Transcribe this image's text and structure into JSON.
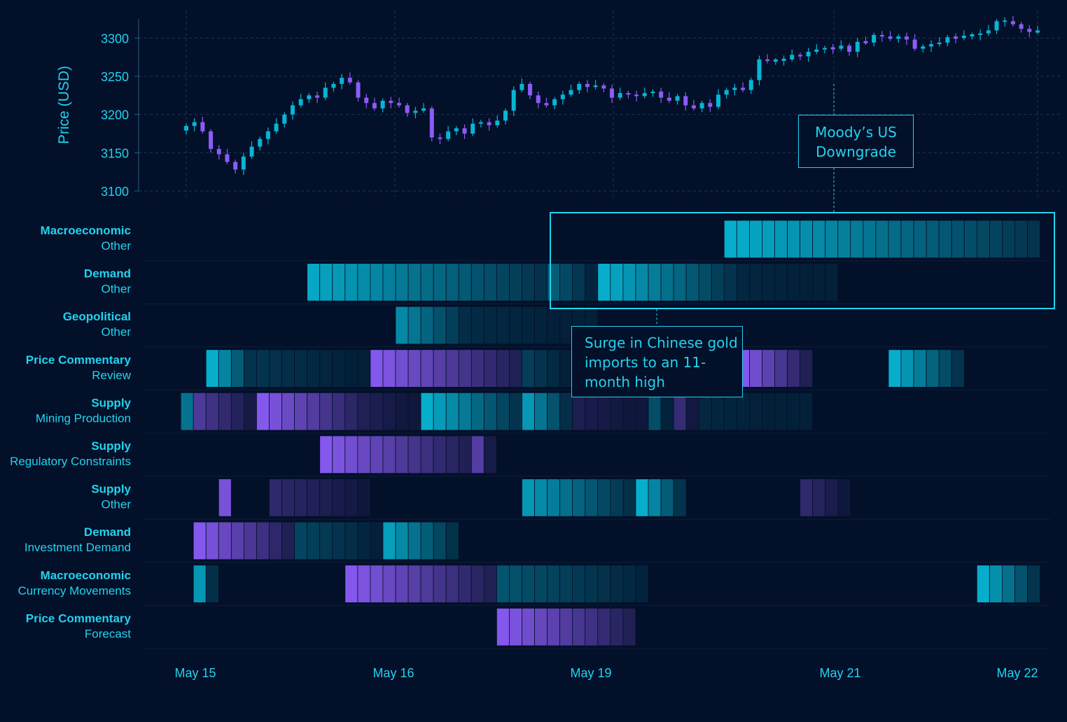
{
  "chart_data": {
    "type": "candlestick+heatmap",
    "colors": {
      "background": "#031029",
      "accent": "#22d3ee",
      "up_candle": "#06b6d4",
      "down_candle": "#8b5cf6",
      "positive_cell": "#06b6d4",
      "negative_cell": "#8b5cf6"
    },
    "price_panel": {
      "ylabel": "Price (USD)",
      "ylim": [
        3100,
        3325
      ],
      "yticks": [
        3100,
        3150,
        3200,
        3250,
        3300
      ],
      "close_series": [
        3185,
        3190,
        3178,
        3155,
        3148,
        3138,
        3128,
        3145,
        3158,
        3168,
        3178,
        3188,
        3200,
        3212,
        3220,
        3225,
        3222,
        3235,
        3240,
        3248,
        3242,
        3222,
        3215,
        3208,
        3218,
        3215,
        3212,
        3202,
        3205,
        3208,
        3170,
        3168,
        3178,
        3182,
        3175,
        3188,
        3190,
        3186,
        3192,
        3205,
        3232,
        3240,
        3225,
        3215,
        3212,
        3220,
        3226,
        3232,
        3240,
        3236,
        3238,
        3234,
        3222,
        3228,
        3226,
        3224,
        3228,
        3230,
        3222,
        3218,
        3224,
        3212,
        3208,
        3215,
        3210,
        3226,
        3232,
        3235,
        3232,
        3245,
        3272,
        3270,
        3271,
        3272,
        3278,
        3276,
        3282,
        3285,
        3287,
        3286,
        3290,
        3282,
        3295,
        3294,
        3304,
        3302,
        3299,
        3302,
        3298,
        3286,
        3289,
        3292,
        3294,
        3301,
        3300,
        3303,
        3304,
        3306,
        3310,
        3322,
        3322,
        3318,
        3312,
        3308,
        3309
      ]
    },
    "x_axis": {
      "tick_labels": [
        "May 15",
        "May 16",
        "May 19",
        "May 21",
        "May 22"
      ]
    },
    "heatmap": {
      "categories": [
        {
          "top": "Macroeconomic",
          "bottom": "Other"
        },
        {
          "top": "Demand",
          "bottom": "Other"
        },
        {
          "top": "Geopolitical",
          "bottom": "Other"
        },
        {
          "top": "Price Commentary",
          "bottom": "Review"
        },
        {
          "top": "Supply",
          "bottom": "Mining Production"
        },
        {
          "top": "Supply",
          "bottom": "Regulatory Constraints"
        },
        {
          "top": "Supply",
          "bottom": "Other"
        },
        {
          "top": "Demand",
          "bottom": "Investment Demand"
        },
        {
          "top": "Macroeconomic",
          "bottom": "Currency Movements"
        },
        {
          "top": "Price Commentary",
          "bottom": "Forecast"
        }
      ],
      "events": [
        {
          "row": 0,
          "start": 46,
          "len": 25,
          "sign": 1,
          "strength": 1.0
        },
        {
          "row": 1,
          "start": 13,
          "len": 19,
          "sign": 1,
          "strength": 0.95
        },
        {
          "row": 1,
          "start": 32,
          "len": 4,
          "sign": 1,
          "strength": 0.45
        },
        {
          "row": 1,
          "start": 36,
          "len": 11,
          "sign": 1,
          "strength": 1.0
        },
        {
          "row": 1,
          "start": 47,
          "len": 8,
          "sign": 1,
          "strength": 0.1
        },
        {
          "row": 2,
          "start": 20,
          "len": 6,
          "sign": 1,
          "strength": 0.75
        },
        {
          "row": 2,
          "start": 26,
          "len": 10,
          "sign": 1,
          "strength": 0.12
        },
        {
          "row": 3,
          "start": 5,
          "len": 4,
          "sign": 1,
          "strength": 1.0
        },
        {
          "row": 3,
          "start": 9,
          "len": 9,
          "sign": 1,
          "strength": 0.18
        },
        {
          "row": 3,
          "start": 18,
          "len": 12,
          "sign": -1,
          "strength": 1.0
        },
        {
          "row": 3,
          "start": 30,
          "len": 4,
          "sign": 1,
          "strength": 0.25
        },
        {
          "row": 3,
          "start": 47,
          "len": 6,
          "sign": -1,
          "strength": 1.0
        },
        {
          "row": 3,
          "start": 59,
          "len": 6,
          "sign": 1,
          "strength": 1.0
        },
        {
          "row": 4,
          "start": 3,
          "len": 1,
          "sign": 1,
          "strength": 0.6
        },
        {
          "row": 4,
          "start": 4,
          "len": 5,
          "sign": -1,
          "strength": 0.55
        },
        {
          "row": 4,
          "start": 9,
          "len": 9,
          "sign": -1,
          "strength": 1.0
        },
        {
          "row": 4,
          "start": 18,
          "len": 4,
          "sign": -1,
          "strength": 0.15
        },
        {
          "row": 4,
          "start": 22,
          "len": 8,
          "sign": 1,
          "strength": 1.0
        },
        {
          "row": 4,
          "start": 30,
          "len": 4,
          "sign": 1,
          "strength": 0.85
        },
        {
          "row": 4,
          "start": 34,
          "len": 6,
          "sign": -1,
          "strength": 0.15
        },
        {
          "row": 4,
          "start": 40,
          "len": 2,
          "sign": 1,
          "strength": 0.35
        },
        {
          "row": 4,
          "start": 42,
          "len": 2,
          "sign": -1,
          "strength": 0.35
        },
        {
          "row": 4,
          "start": 44,
          "len": 9,
          "sign": 1,
          "strength": 0.1
        },
        {
          "row": 5,
          "start": 14,
          "len": 12,
          "sign": -1,
          "strength": 1.0
        },
        {
          "row": 5,
          "start": 26,
          "len": 2,
          "sign": -1,
          "strength": 0.6
        },
        {
          "row": 6,
          "start": 6,
          "len": 1,
          "sign": -1,
          "strength": 0.9
        },
        {
          "row": 6,
          "start": 10,
          "len": 8,
          "sign": -1,
          "strength": 0.3
        },
        {
          "row": 6,
          "start": 30,
          "len": 9,
          "sign": 1,
          "strength": 0.85
        },
        {
          "row": 6,
          "start": 39,
          "len": 4,
          "sign": 1,
          "strength": 1.0
        },
        {
          "row": 6,
          "start": 52,
          "len": 4,
          "sign": -1,
          "strength": 0.3
        },
        {
          "row": 7,
          "start": 4,
          "len": 8,
          "sign": -1,
          "strength": 1.0
        },
        {
          "row": 7,
          "start": 12,
          "len": 7,
          "sign": 1,
          "strength": 0.3
        },
        {
          "row": 7,
          "start": 19,
          "len": 6,
          "sign": 1,
          "strength": 0.9
        },
        {
          "row": 8,
          "start": 4,
          "len": 2,
          "sign": 1,
          "strength": 0.85
        },
        {
          "row": 8,
          "start": 16,
          "len": 12,
          "sign": -1,
          "strength": 1.0
        },
        {
          "row": 8,
          "start": 28,
          "len": 12,
          "sign": 1,
          "strength": 0.4
        },
        {
          "row": 8,
          "start": 66,
          "len": 5,
          "sign": 1,
          "strength": 1.0
        },
        {
          "row": 9,
          "start": 28,
          "len": 11,
          "sign": -1,
          "strength": 1.0
        }
      ]
    },
    "annotations": [
      {
        "text": "Moody's US Downgrade"
      },
      {
        "text": "Surge in Chinese gold imports to an 11-month high"
      }
    ]
  },
  "annotations_display": {
    "moodys_line1": "Moody’s US",
    "moodys_line2": "Downgrade",
    "surge_line1": "Surge in Chinese gold",
    "surge_line2": "imports to an 11-",
    "surge_line3": "month high"
  }
}
